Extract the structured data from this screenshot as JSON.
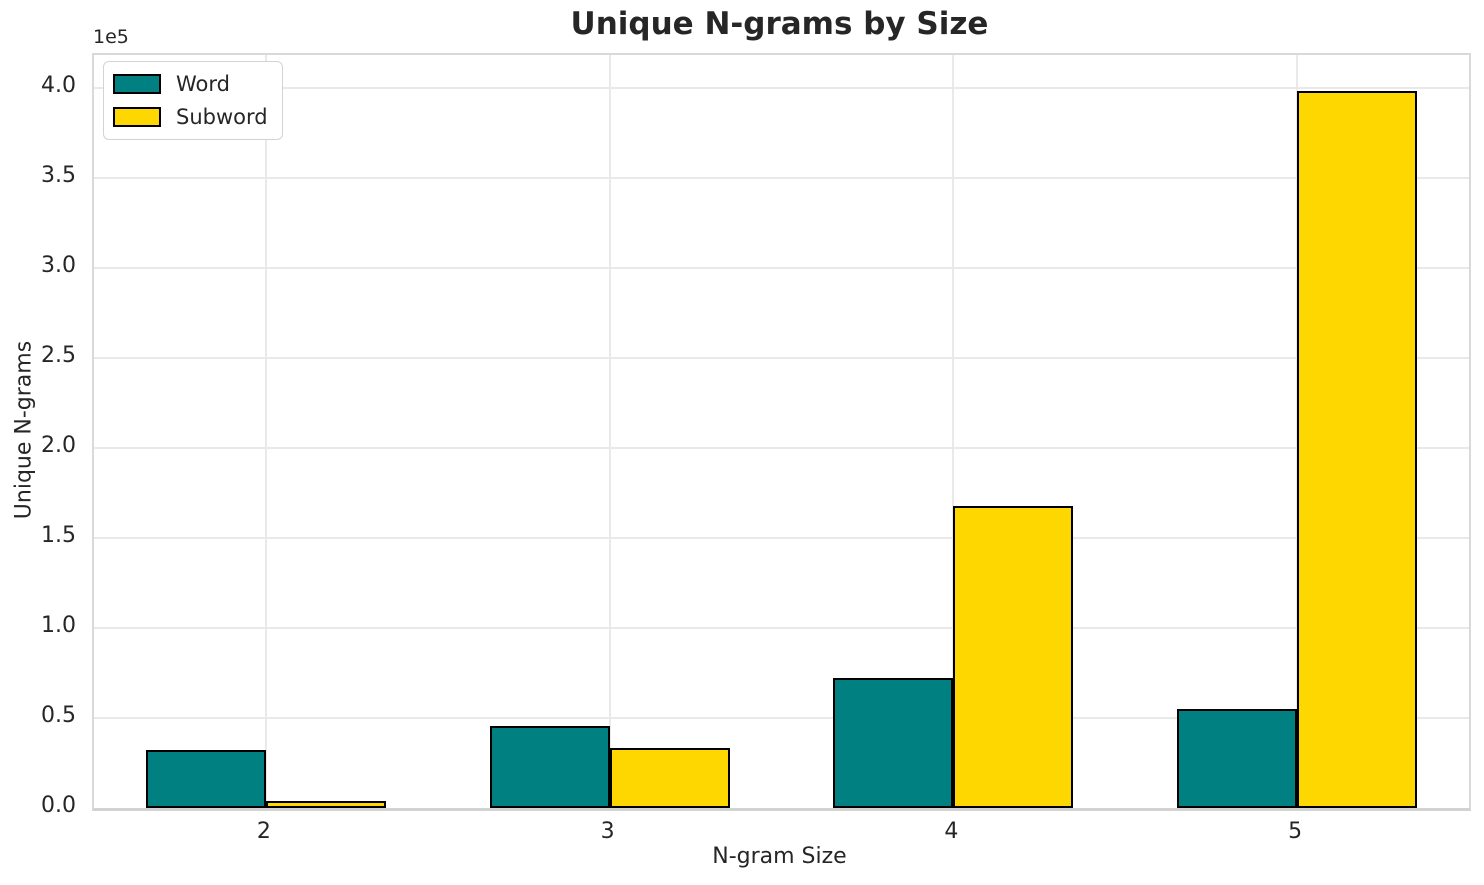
{
  "chart_data": {
    "type": "bar",
    "title": "Unique N-grams by Size",
    "xlabel": "N-gram Size",
    "ylabel": "Unique N-grams",
    "y_offset_label": "1e5",
    "categories": [
      "2",
      "3",
      "4",
      "5"
    ],
    "series": [
      {
        "name": "Word",
        "color": "#008080",
        "values": [
          32000,
          45500,
          72000,
          55000
        ]
      },
      {
        "name": "Subword",
        "color": "#ffd700",
        "values": [
          4000,
          33500,
          168000,
          398500
        ]
      }
    ],
    "bar_edge_color": "#000000",
    "ylim": [
      0,
      418300
    ],
    "ytick_step": 50000,
    "ytick_max": 400000,
    "ytick_labels": [
      "0.0",
      "0.5",
      "1.0",
      "1.5",
      "2.0",
      "2.5",
      "3.0",
      "3.5",
      "4.0"
    ],
    "grid": true,
    "legend_position": "upper left"
  }
}
